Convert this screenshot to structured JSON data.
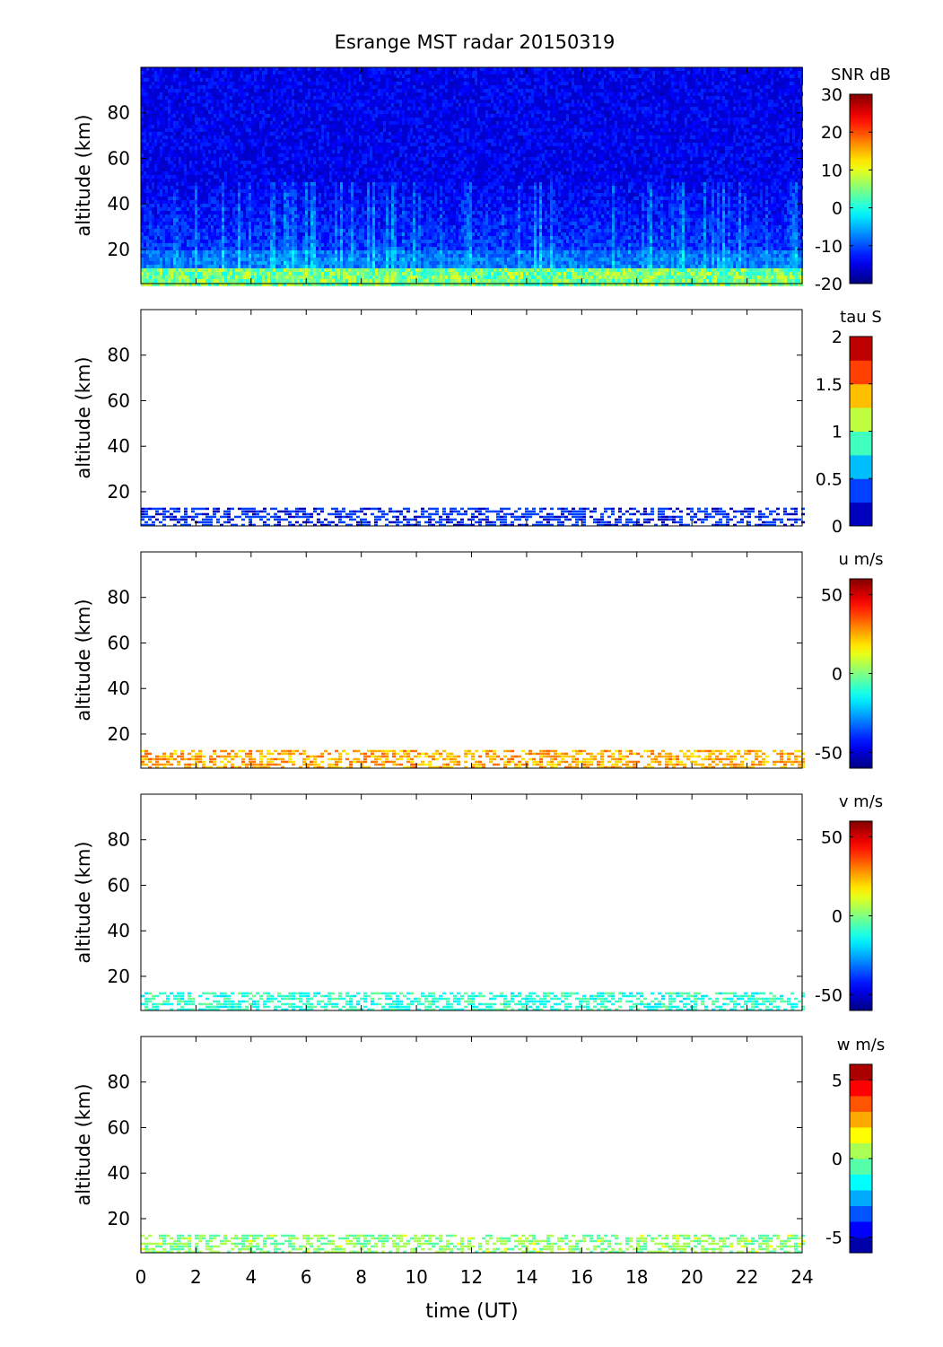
{
  "title": "Esrange MST radar 20150319",
  "chart_data": {
    "type": "heatmap",
    "title": "Esrange MST radar 20150319",
    "xlabel": "time (UT)",
    "xlim": [
      0,
      24
    ],
    "x_ticks": [
      "0",
      "2",
      "4",
      "6",
      "8",
      "10",
      "12",
      "14",
      "16",
      "18",
      "20",
      "22",
      "24"
    ],
    "panels": [
      {
        "name": "snr",
        "ylabel": "altitude (km)",
        "ylim": [
          5,
          100
        ],
        "y_ticks": [
          "20",
          "40",
          "60",
          "80"
        ],
        "colorbar_label": "SNR dB",
        "colorbar_range": [
          -20,
          30
        ],
        "colorbar_ticks": [
          "-20",
          "-10",
          "0",
          "10",
          "20",
          "30"
        ],
        "colormap": "jet-continuous"
      },
      {
        "name": "tau",
        "ylabel": "altitude (km)",
        "ylim": [
          5,
          100
        ],
        "y_ticks": [
          "20",
          "40",
          "60",
          "80"
        ],
        "colorbar_label": "tau S",
        "colorbar_range": [
          0,
          2
        ],
        "colorbar_ticks": [
          "0",
          "0.5",
          "1",
          "1.5",
          "2"
        ],
        "colormap": "jet-discrete-8",
        "echo_layer_km": [
          5,
          13
        ],
        "typical_value": 0.3
      },
      {
        "name": "u",
        "ylabel": "altitude (km)",
        "ylim": [
          5,
          100
        ],
        "y_ticks": [
          "20",
          "40",
          "60",
          "80"
        ],
        "colorbar_label": "u m/s",
        "colorbar_range": [
          -60,
          60
        ],
        "colorbar_ticks": [
          "-50",
          "0",
          "50"
        ],
        "colormap": "jet-continuous",
        "echo_layer_km": [
          5,
          13
        ],
        "typical_value": 25
      },
      {
        "name": "v",
        "ylabel": "altitude (km)",
        "ylim": [
          5,
          100
        ],
        "y_ticks": [
          "20",
          "40",
          "60",
          "80"
        ],
        "colorbar_label": "v m/s",
        "colorbar_range": [
          -60,
          60
        ],
        "colorbar_ticks": [
          "-50",
          "0",
          "50"
        ],
        "colormap": "jet-continuous",
        "echo_layer_km": [
          5,
          13
        ],
        "typical_value": -10
      },
      {
        "name": "w",
        "ylabel": "altitude (km)",
        "ylim": [
          5,
          100
        ],
        "y_ticks": [
          "20",
          "40",
          "60",
          "80"
        ],
        "colorbar_label": "w m/s",
        "colorbar_range": [
          -6,
          6
        ],
        "colorbar_ticks": [
          "-5",
          "0",
          "5"
        ],
        "colormap": "jet-discrete-12",
        "echo_layer_km": [
          5,
          13
        ],
        "typical_value": 0.2
      }
    ]
  }
}
